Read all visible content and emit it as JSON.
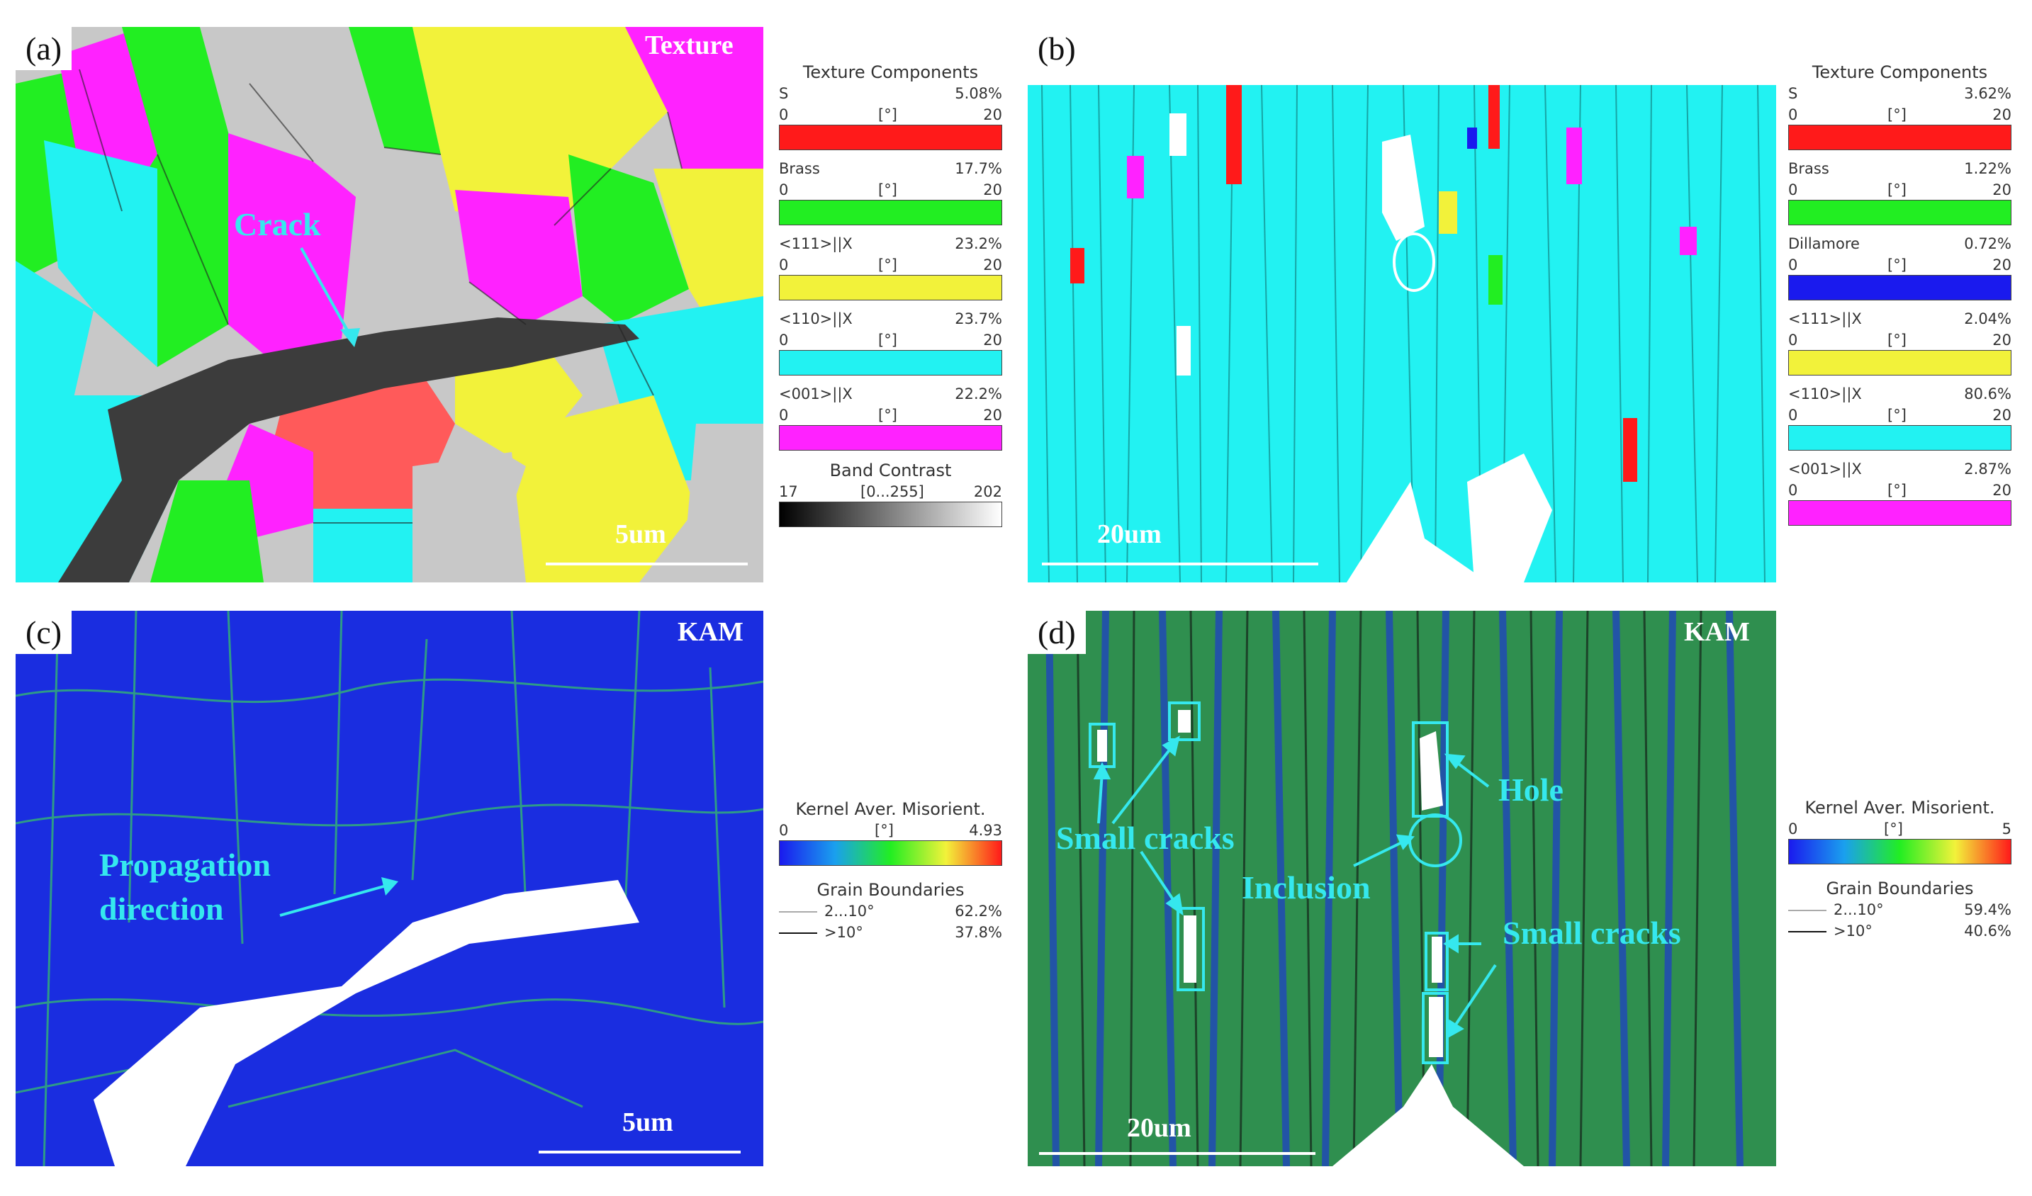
{
  "panels": {
    "a": {
      "letter": "(a)",
      "title": "Texture",
      "scale": "5um",
      "crack_label": "Crack",
      "legend": {
        "title": "Texture Components",
        "components": [
          {
            "name": "S",
            "pct": "5.08%",
            "color": "#ff1a1a"
          },
          {
            "name": "Brass",
            "pct": "17.7%",
            "color": "#22ee22"
          },
          {
            "name": "<111>||X",
            "pct": "23.2%",
            "color": "#f2f23a"
          },
          {
            "name": "<110>||X",
            "pct": "23.7%",
            "color": "#22f2f2"
          },
          {
            "name": "<001>||X",
            "pct": "22.2%",
            "color": "#ff22ff"
          }
        ],
        "range": {
          "min": "0",
          "unit": "[°]",
          "max": "20"
        },
        "band": {
          "title": "Band Contrast",
          "min": "17",
          "range": "[0...255]",
          "max": "202"
        }
      }
    },
    "b": {
      "letter": "(b)",
      "title": "Texture",
      "scale": "20um",
      "legend": {
        "title": "Texture Components",
        "components": [
          {
            "name": "S",
            "pct": "3.62%",
            "color": "#ff1a1a"
          },
          {
            "name": "Brass",
            "pct": "1.22%",
            "color": "#22ee22"
          },
          {
            "name": "Dillamore",
            "pct": "0.72%",
            "color": "#1a1aee"
          },
          {
            "name": "<111>||X",
            "pct": "2.04%",
            "color": "#f2f23a"
          },
          {
            "name": "<110>||X",
            "pct": "80.6%",
            "color": "#22f2f2"
          },
          {
            "name": "<001>||X",
            "pct": "2.87%",
            "color": "#ff22ff"
          }
        ],
        "range": {
          "min": "0",
          "unit": "[°]",
          "max": "20"
        }
      }
    },
    "c": {
      "letter": "(c)",
      "title": "KAM",
      "scale": "5um",
      "annotation_line1": "Propagation",
      "annotation_line2": "direction",
      "legend": {
        "title": "Kernel Aver. Misorient.",
        "min": "0",
        "unit": "[°]",
        "max": "4.93",
        "gb_title": "Grain Boundaries",
        "gb": [
          {
            "label": "2...10°",
            "pct": "62.2%"
          },
          {
            "label": ">10°",
            "pct": "37.8%"
          }
        ]
      }
    },
    "d": {
      "letter": "(d)",
      "title": "KAM",
      "scale": "20um",
      "labels": {
        "small_cracks_left": "Small cracks",
        "hole": "Hole",
        "inclusion": "Inclusion",
        "small_cracks_right": "Small cracks"
      },
      "legend": {
        "title": "Kernel Aver. Misorient.",
        "min": "0",
        "unit": "[°]",
        "max": "5",
        "gb_title": "Grain Boundaries",
        "gb": [
          {
            "label": "2...10°",
            "pct": "59.4%"
          },
          {
            "label": ">10°",
            "pct": "40.6%"
          }
        ]
      }
    }
  }
}
